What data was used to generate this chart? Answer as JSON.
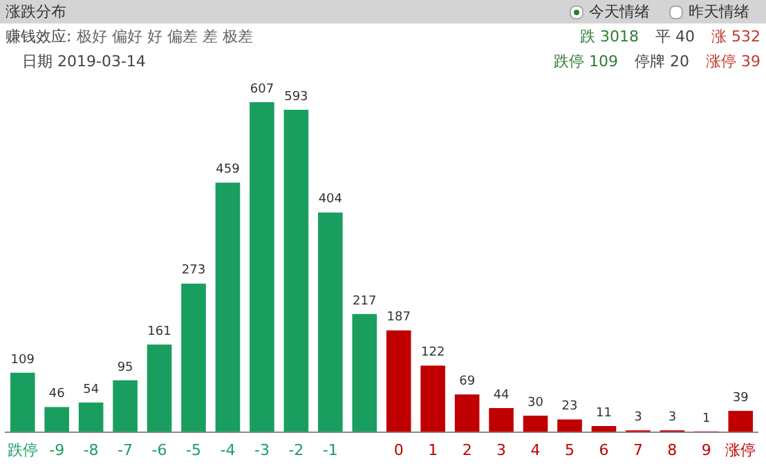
{
  "chart_data": {
    "type": "bar",
    "title": "涨跌分布",
    "subtitle": "日期    2019-03-14",
    "categories": [
      "跌停",
      "-9",
      "-8",
      "-7",
      "-6",
      "-5",
      "-4",
      "-3",
      "-2",
      "-1",
      null,
      "0",
      "1",
      "2",
      "3",
      "4",
      "5",
      "6",
      "7",
      "8",
      "9",
      "涨停"
    ],
    "values": [
      109,
      46,
      54,
      95,
      161,
      273,
      459,
      607,
      593,
      404,
      217,
      187,
      122,
      69,
      44,
      30,
      23,
      11,
      3,
      3,
      1,
      39
    ],
    "colors": [
      "#1a9e5f",
      "#1a9e5f",
      "#1a9e5f",
      "#1a9e5f",
      "#1a9e5f",
      "#1a9e5f",
      "#1a9e5f",
      "#1a9e5f",
      "#1a9e5f",
      "#1a9e5f",
      "#1a9e5f",
      "#c00000",
      "#c00000",
      "#c00000",
      "#c00000",
      "#c00000",
      "#c00000",
      "#c00000",
      "#c00000",
      "#c00000",
      "#c00000",
      "#c00000"
    ],
    "data_labels": true,
    "grid": false,
    "legend": false,
    "annotations": [
      "今天情绪",
      "昨天情绪",
      "赚钱效应:",
      "极好 偏好 好 偏差 差 极差",
      "跌 3018",
      "平 40",
      "涨 532",
      "跌停 109",
      "停牌 20",
      "涨停 39"
    ]
  }
}
